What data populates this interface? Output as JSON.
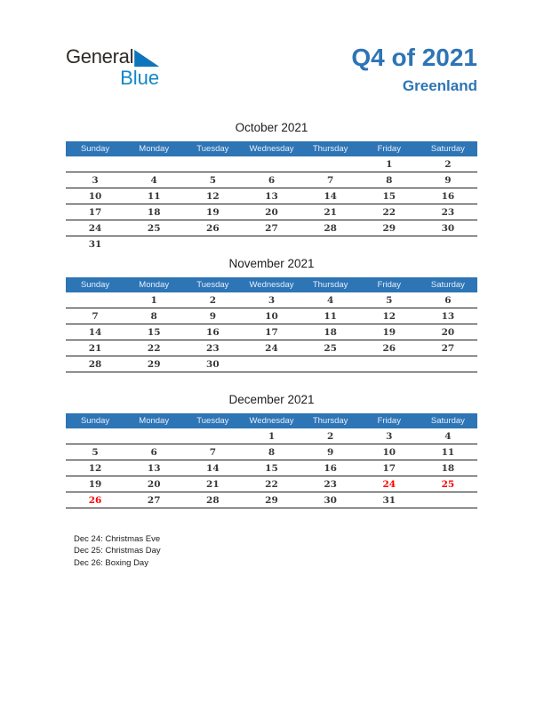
{
  "logo": {
    "general": "General",
    "blue": "Blue",
    "triangle_icon": "blue-right-triangle"
  },
  "header": {
    "title": "Q4 of 2021",
    "subtitle": "Greenland"
  },
  "colors": {
    "header_bar_blue": "#2E75B6",
    "title_blue": "#2E74B5",
    "logo_text_blue": "#1287C9",
    "logo_triangle_blue": "#0C76BA",
    "holiday_red": "#FF0000",
    "day_number_gray": "#3A3A3A"
  },
  "day_headers": [
    "Sunday",
    "Monday",
    "Tuesday",
    "Wednesday",
    "Thursday",
    "Friday",
    "Saturday"
  ],
  "months": [
    {
      "id": "october-2021",
      "title": "October 2021",
      "holidays": [],
      "weeks": [
        [
          "",
          "",
          "",
          "",
          "",
          "1",
          "2"
        ],
        [
          "3",
          "4",
          "5",
          "6",
          "7",
          "8",
          "9"
        ],
        [
          "10",
          "11",
          "12",
          "13",
          "14",
          "15",
          "16"
        ],
        [
          "17",
          "18",
          "19",
          "20",
          "21",
          "22",
          "23"
        ],
        [
          "24",
          "25",
          "26",
          "27",
          "28",
          "29",
          "30"
        ],
        [
          "31",
          "",
          "",
          "",
          "",
          "",
          ""
        ]
      ]
    },
    {
      "id": "november-2021",
      "title": "November 2021",
      "holidays": [],
      "weeks": [
        [
          "",
          "1",
          "2",
          "3",
          "4",
          "5",
          "6"
        ],
        [
          "7",
          "8",
          "9",
          "10",
          "11",
          "12",
          "13"
        ],
        [
          "14",
          "15",
          "16",
          "17",
          "18",
          "19",
          "20"
        ],
        [
          "21",
          "22",
          "23",
          "24",
          "25",
          "26",
          "27"
        ],
        [
          "28",
          "29",
          "30",
          "",
          "",
          "",
          ""
        ],
        [
          "",
          "",
          "",
          "",
          "",
          "",
          ""
        ]
      ]
    },
    {
      "id": "december-2021",
      "title": "December 2021",
      "holidays": [
        "24",
        "25",
        "26"
      ],
      "weeks": [
        [
          "",
          "",
          "",
          "1",
          "2",
          "3",
          "4"
        ],
        [
          "5",
          "6",
          "7",
          "8",
          "9",
          "10",
          "11"
        ],
        [
          "12",
          "13",
          "14",
          "15",
          "16",
          "17",
          "18"
        ],
        [
          "19",
          "20",
          "21",
          "22",
          "23",
          "24",
          "25"
        ],
        [
          "26",
          "27",
          "28",
          "29",
          "30",
          "31",
          ""
        ],
        [
          "",
          "",
          "",
          "",
          "",
          "",
          ""
        ]
      ]
    }
  ],
  "legend": [
    "Dec 24: Christmas Eve",
    "Dec 25: Christmas Day",
    "Dec 26: Boxing Day"
  ]
}
